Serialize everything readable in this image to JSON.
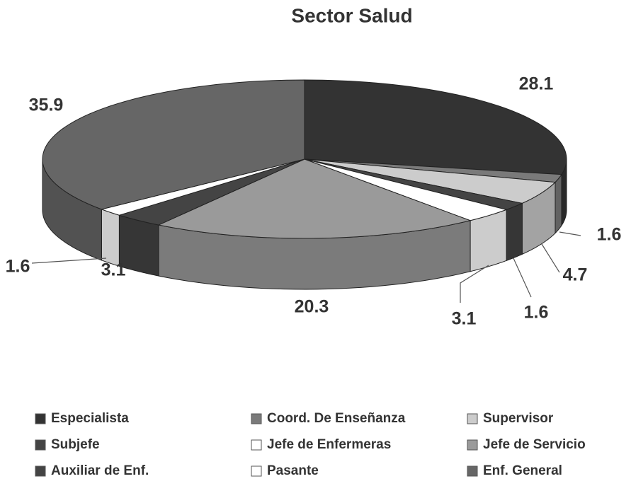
{
  "chart_data": {
    "type": "pie",
    "title": "Sector Salud",
    "categories": [
      "Especialista",
      "Coord. De Enseñanza",
      "Supervisor",
      "Subjefe",
      "Jefe de Enfermeras",
      "Jefe de Servicio",
      "Auxiliar de Enf.",
      "Pasante",
      "Enf. General"
    ],
    "values": [
      28.1,
      1.6,
      4.7,
      1.6,
      3.1,
      20.3,
      3.1,
      1.6,
      35.9
    ],
    "colors": [
      "#333333",
      "#7a7a7a",
      "#cccccc",
      "#444444",
      "#ffffff",
      "#9a9a9a",
      "#444444",
      "#ffffff",
      "#666666"
    ],
    "legend": "bottom"
  }
}
